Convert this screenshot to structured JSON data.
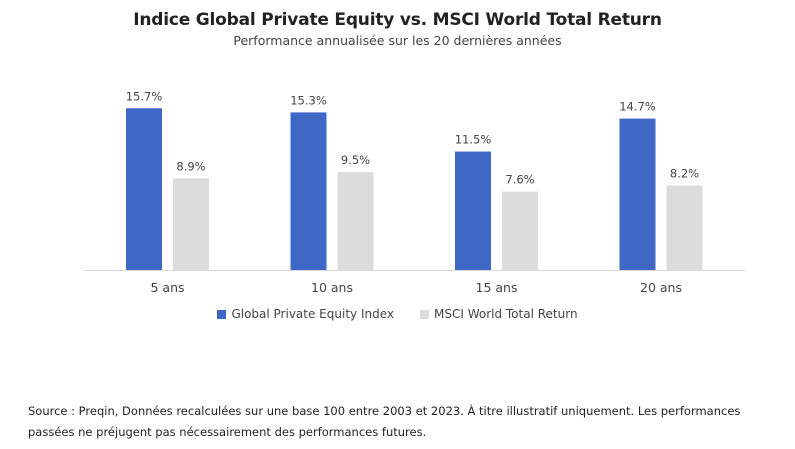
{
  "chart_data": {
    "type": "bar",
    "title": "Indice Global Private Equity vs. MSCI World Total Return",
    "subtitle": "Performance annualisée sur les 20 dernières années",
    "categories": [
      "5 ans",
      "10 ans",
      "15 ans",
      "20 ans"
    ],
    "series": [
      {
        "name": "Global Private Equity Index",
        "values": [
          15.7,
          15.3,
          11.5,
          14.7
        ],
        "labels": [
          "15.7%",
          "15.3%",
          "11.5%",
          "14.7%"
        ],
        "color": "#3f67c6"
      },
      {
        "name": "MSCI World Total Return",
        "values": [
          8.9,
          9.5,
          7.6,
          8.2
        ],
        "labels": [
          "8.9%",
          "9.5%",
          "7.6%",
          "8.2%"
        ],
        "color": "#dcdcdc"
      }
    ],
    "ylim": [
      0,
      16
    ],
    "grid": false,
    "legend_position": "bottom"
  },
  "source_note": "Source : Preqin, Données recalculées sur une base 100 entre 2003 et 2023. À titre illustratif uniquement. Les performances passées ne préjugent pas nécessairement des performances futures."
}
